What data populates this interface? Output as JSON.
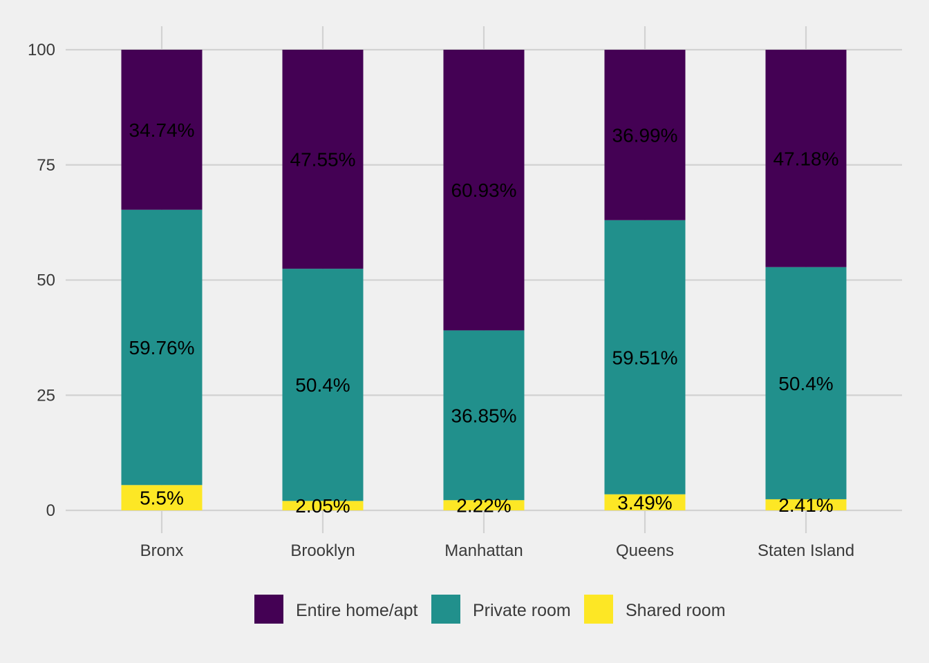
{
  "chart_data": {
    "type": "bar",
    "stacked": true,
    "categories": [
      "Bronx",
      "Brooklyn",
      "Manhattan",
      "Queens",
      "Staten Island"
    ],
    "series": [
      {
        "name": "Entire home/apt",
        "color": "#440154",
        "values": [
          34.74,
          47.55,
          60.93,
          36.99,
          47.18
        ],
        "labels": [
          "34.74%",
          "47.55%",
          "60.93%",
          "36.99%",
          "47.18%"
        ]
      },
      {
        "name": "Private room",
        "color": "#21908C",
        "values": [
          59.76,
          50.4,
          36.85,
          59.51,
          50.4
        ],
        "labels": [
          "59.76%",
          "50.4%",
          "36.85%",
          "59.51%",
          "50.4%"
        ]
      },
      {
        "name": "Shared room",
        "color": "#FDE725",
        "values": [
          5.5,
          2.05,
          2.22,
          3.49,
          2.41
        ],
        "labels": [
          "5.5%",
          "2.05%",
          "2.22%",
          "3.49%",
          "2.41%"
        ]
      }
    ],
    "stack_order_bottom_to_top": [
      "Shared room",
      "Private room",
      "Entire home/apt"
    ],
    "ylim": [
      0,
      100
    ],
    "yticks": [
      0,
      25,
      50,
      75,
      100
    ],
    "ytick_labels": [
      "0",
      "25",
      "50",
      "75",
      "100"
    ],
    "title": "",
    "xlabel": "",
    "ylabel": "",
    "grid": true,
    "legend_position": "bottom",
    "background_color": "#f0f0f0",
    "grid_color": "#d2d2d2"
  }
}
